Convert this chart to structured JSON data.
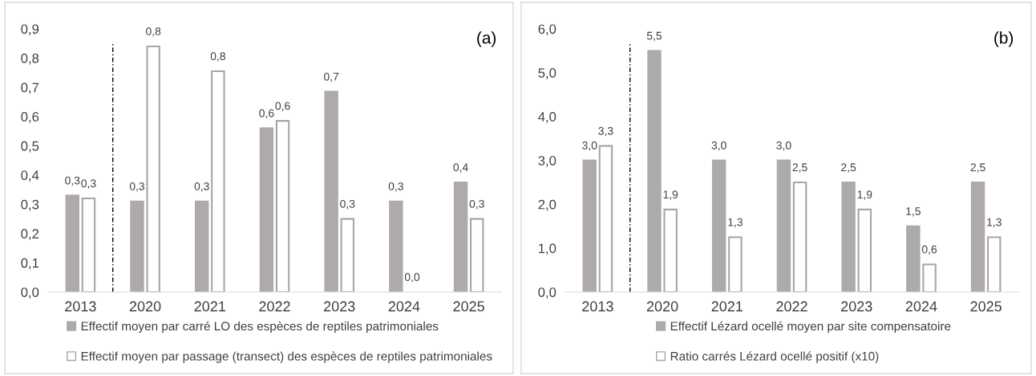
{
  "chart_data": [
    {
      "type": "bar",
      "categories": [
        "2013",
        "2020",
        "2021",
        "2022",
        "2023",
        "2024",
        "2025"
      ],
      "ylim": [
        0,
        0.9
      ],
      "yticks": [
        {
          "value": 0,
          "label": "0,0"
        },
        {
          "value": 0.1,
          "label": "0,1"
        },
        {
          "value": 0.2,
          "label": "0,2"
        },
        {
          "value": 0.3,
          "label": "0,3"
        },
        {
          "value": 0.4,
          "label": "0,4"
        },
        {
          "value": 0.5,
          "label": "0,5"
        },
        {
          "value": 0.6,
          "label": "0,6"
        },
        {
          "value": 0.7,
          "label": "0,7"
        },
        {
          "value": 0.8,
          "label": "0,8"
        },
        {
          "value": 0.9,
          "label": "0,9"
        }
      ],
      "grid": false,
      "legend": "bottom",
      "annotations": [
        "(a)"
      ],
      "series": [
        {
          "name": "Effectif moyen par carré LO des espèces de reptiles patrimoniales",
          "color": "#aeaaaa",
          "values": [
            0.33,
            0.31,
            0.31,
            0.56,
            0.685,
            0.31,
            0.375
          ],
          "value_labels": [
            "0,3",
            "0,3",
            "0,3",
            "0,6",
            "0,7",
            "0,3",
            "0,4"
          ]
        },
        {
          "name": "Effectif moyen par passage (transect) des espèces de reptiles patrimoniales",
          "color": "#ffffff",
          "values": [
            0.32,
            0.84,
            0.755,
            0.585,
            0.25,
            0.0,
            0.25
          ],
          "value_labels": [
            "0,3",
            "0,8",
            "0,8",
            "0,6",
            "0,3",
            "0,0",
            "0,3"
          ]
        }
      ]
    },
    {
      "type": "bar",
      "categories": [
        "2013",
        "2020",
        "2021",
        "2022",
        "2023",
        "2024",
        "2025"
      ],
      "ylim": [
        0,
        6
      ],
      "yticks": [
        {
          "value": 0,
          "label": "0,0"
        },
        {
          "value": 1,
          "label": "1,0"
        },
        {
          "value": 2,
          "label": "2,0"
        },
        {
          "value": 3,
          "label": "3,0"
        },
        {
          "value": 4,
          "label": "4,0"
        },
        {
          "value": 5,
          "label": "5,0"
        },
        {
          "value": 6,
          "label": "6,0"
        }
      ],
      "grid": false,
      "legend": "bottom",
      "annotations": [
        "(b)"
      ],
      "series": [
        {
          "name": "Effectif Lézard ocellé moyen par site compensatoire",
          "color": "#aeaaaa",
          "values": [
            3.0,
            5.5,
            3.0,
            3.0,
            2.5,
            1.5,
            2.5
          ],
          "value_labels": [
            "3,0",
            "5,5",
            "3,0",
            "3,0",
            "2,5",
            "1,5",
            "2,5"
          ]
        },
        {
          "name": "Ratio carrés Lézard ocellé positif (x10)",
          "color": "#ffffff",
          "values": [
            3.33,
            1.88,
            1.25,
            2.5,
            1.88,
            0.63,
            1.25
          ],
          "value_labels": [
            "3,3",
            "1,9",
            "1,3",
            "2,5",
            "1,9",
            "0,6",
            "1,3"
          ]
        }
      ]
    }
  ]
}
